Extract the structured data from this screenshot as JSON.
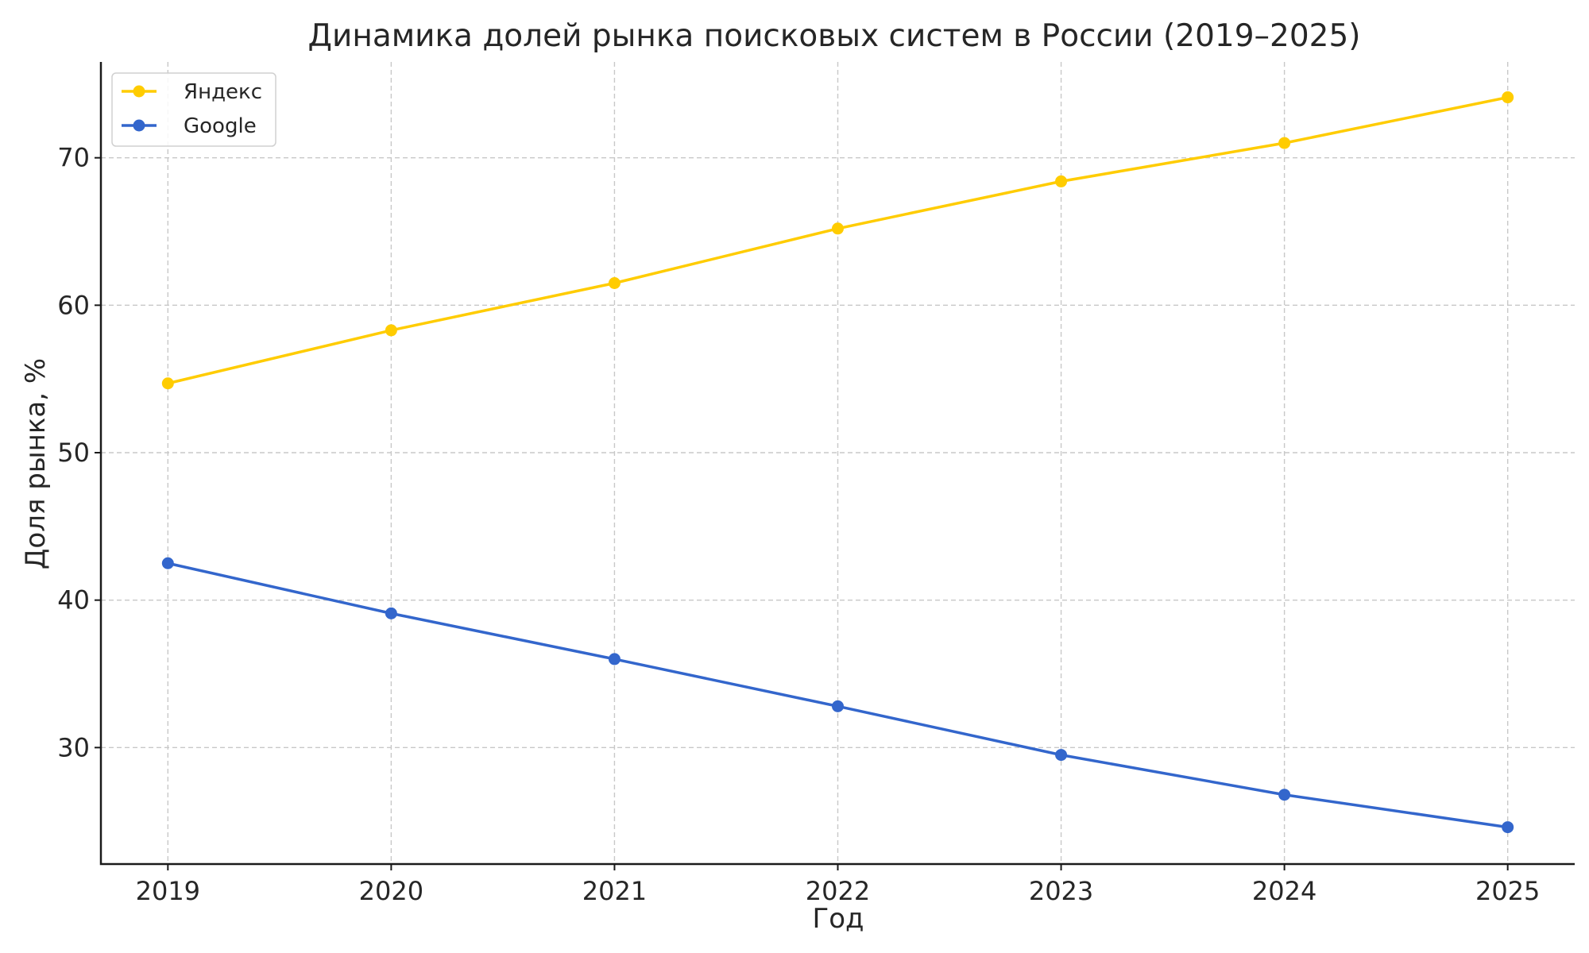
{
  "chart_data": {
    "type": "line",
    "title": "Динамика долей рынка поисковых систем в России (2019–2025)",
    "xlabel": "Год",
    "ylabel": "Доля рынка, %",
    "x": [
      "2019",
      "2020",
      "2021",
      "2022",
      "2023",
      "2024",
      "2025"
    ],
    "xlim": [
      2018.7,
      2025.3
    ],
    "ylim": [
      22.1,
      76.5
    ],
    "yticks": [
      30,
      40,
      50,
      60,
      70
    ],
    "grid": true,
    "legend_position": "top-left",
    "series": [
      {
        "name": "Яндекс",
        "color": "#FFCC00",
        "values": [
          54.7,
          58.3,
          61.5,
          65.2,
          68.4,
          71.0,
          74.1
        ]
      },
      {
        "name": "Google",
        "color": "#3366CC",
        "values": [
          42.5,
          39.1,
          36.0,
          32.8,
          29.5,
          26.8,
          24.6
        ]
      }
    ]
  }
}
